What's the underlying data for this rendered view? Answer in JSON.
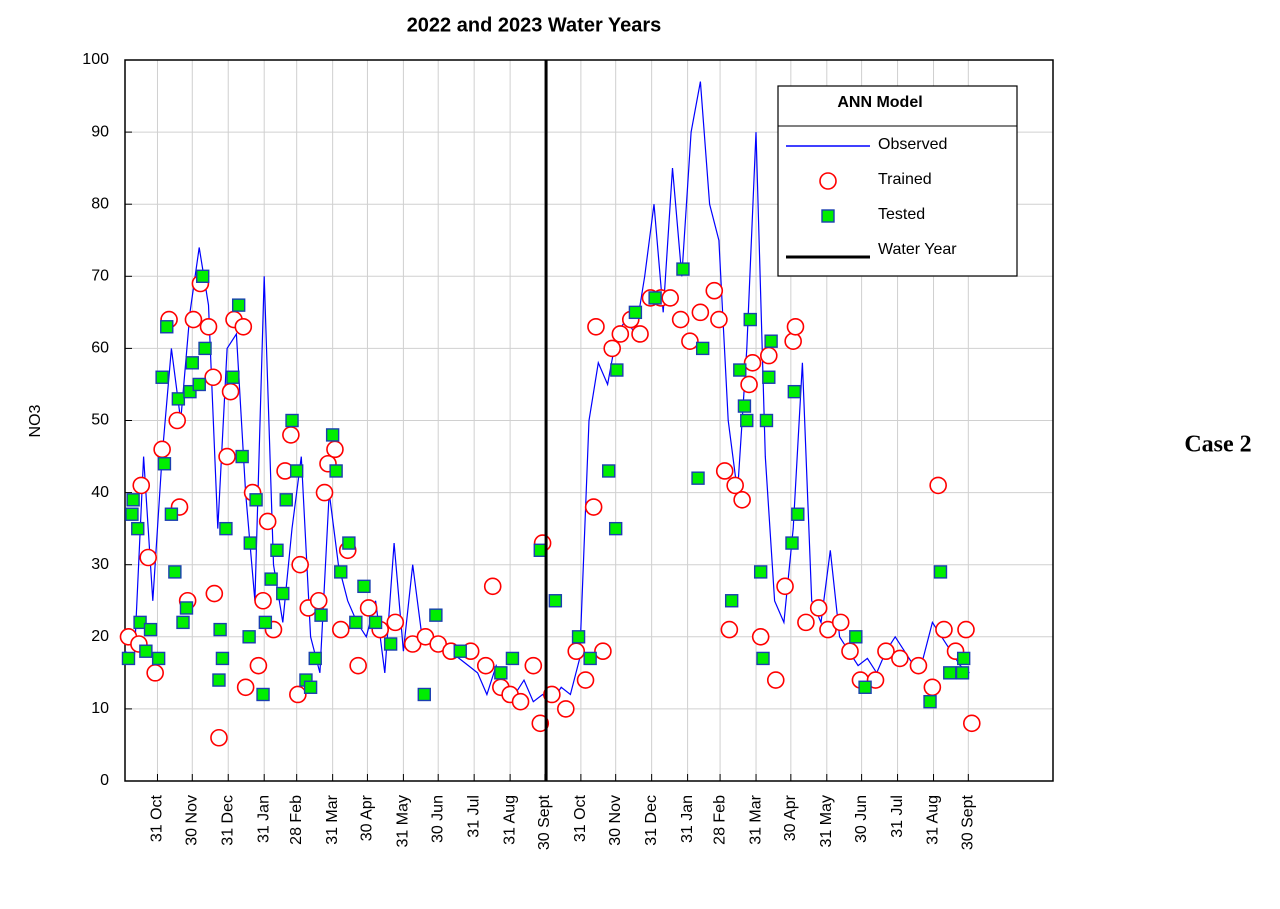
{
  "chart_data": {
    "type": "line",
    "title": "2022 and 2023 Water Years",
    "ylabel": "NO3",
    "annotation": "Case 2",
    "legend_title": "ANN Model",
    "legend_position": "upper right",
    "grid": true,
    "xlim": [
      2,
      802
    ],
    "ylim": [
      0,
      100
    ],
    "yticks": [
      0,
      10,
      20,
      30,
      40,
      50,
      60,
      70,
      80,
      90,
      100
    ],
    "xticks": [
      {
        "value": 30,
        "label": "31 Oct"
      },
      {
        "value": 60,
        "label": "30 Nov"
      },
      {
        "value": 91,
        "label": "31 Dec"
      },
      {
        "value": 122,
        "label": "31 Jan"
      },
      {
        "value": 150,
        "label": "28 Feb"
      },
      {
        "value": 181,
        "label": "31 Mar"
      },
      {
        "value": 211,
        "label": "30 Apr"
      },
      {
        "value": 242,
        "label": "31 May"
      },
      {
        "value": 272,
        "label": "30 Jun"
      },
      {
        "value": 303,
        "label": "31 Jul"
      },
      {
        "value": 334,
        "label": "31 Aug"
      },
      {
        "value": 364,
        "label": "30 Sept"
      },
      {
        "value": 395,
        "label": "31 Oct"
      },
      {
        "value": 425,
        "label": "30 Nov"
      },
      {
        "value": 456,
        "label": "31 Dec"
      },
      {
        "value": 487,
        "label": "31 Jan"
      },
      {
        "value": 515,
        "label": "28 Feb"
      },
      {
        "value": 546,
        "label": "31 Mar"
      },
      {
        "value": 576,
        "label": "30 Apr"
      },
      {
        "value": 607,
        "label": "31 May"
      },
      {
        "value": 637,
        "label": "30 Jun"
      },
      {
        "value": 668,
        "label": "31 Jul"
      },
      {
        "value": 699,
        "label": "31 Aug"
      },
      {
        "value": 729,
        "label": "30 Sept"
      }
    ],
    "series": [
      {
        "name": "Observed",
        "style": "line",
        "color": "#0000ff",
        "x": [
          2,
          10,
          18,
          26,
          34,
          42,
          50,
          58,
          66,
          74,
          82,
          90,
          98,
          106,
          114,
          122,
          130,
          138,
          146,
          154,
          162,
          170,
          178,
          186,
          194,
          202,
          210,
          218,
          226,
          234,
          242,
          250,
          258,
          266,
          274,
          282,
          290,
          298,
          306,
          314,
          322,
          330,
          338,
          346,
          354,
          362,
          370,
          378,
          386,
          394,
          402,
          410,
          418,
          426,
          434,
          442,
          450,
          458,
          466,
          474,
          482,
          490,
          498,
          506,
          514,
          522,
          530,
          538,
          546,
          554,
          562,
          570,
          578,
          586,
          594,
          602,
          610,
          618,
          626,
          634,
          642,
          650,
          658,
          666,
          674,
          682,
          690,
          698,
          706,
          714,
          722,
          730
        ],
        "values": [
          18,
          17,
          45,
          25,
          45,
          60,
          50,
          65,
          74,
          66,
          35,
          60,
          62,
          40,
          25,
          70,
          30,
          22,
          35,
          45,
          20,
          15,
          40,
          30,
          25,
          22,
          20,
          25,
          15,
          33,
          18,
          30,
          20,
          19,
          20,
          18,
          17,
          16,
          15,
          12,
          16,
          13,
          12,
          14,
          11,
          12,
          11,
          13,
          12,
          17,
          50,
          58,
          55,
          62,
          64,
          62,
          70,
          80,
          65,
          85,
          70,
          90,
          97,
          80,
          75,
          50,
          40,
          60,
          90,
          45,
          25,
          22,
          35,
          58,
          25,
          22,
          32,
          20,
          18,
          16,
          17,
          15,
          18,
          20,
          18,
          16,
          17,
          22,
          20,
          18,
          16,
          15
        ]
      },
      {
        "name": "Trained",
        "style": "circle",
        "color": "#ff0000",
        "x": [
          5,
          14,
          16,
          22,
          28,
          34,
          40,
          47,
          49,
          56,
          61,
          67,
          74,
          78,
          79,
          83,
          90,
          93,
          96,
          104,
          106,
          112,
          117,
          121,
          125,
          130,
          140,
          145,
          151,
          153,
          160,
          169,
          174,
          177,
          183,
          188,
          194,
          203,
          212,
          222,
          235,
          250,
          261,
          272,
          283,
          300,
          313,
          319,
          326,
          334,
          343,
          354,
          360,
          362,
          370,
          382,
          391,
          399,
          406,
          408,
          414,
          422,
          429,
          438,
          446,
          455,
          464,
          472,
          481,
          489,
          498,
          510,
          514,
          519,
          523,
          528,
          534,
          540,
          543,
          550,
          557,
          563,
          571,
          578,
          580,
          589,
          600,
          608,
          619,
          627,
          636,
          649,
          658,
          670,
          686,
          698,
          703,
          708,
          718,
          727,
          732
        ],
        "values": [
          20,
          19,
          41,
          31,
          15,
          46,
          64,
          50,
          38,
          25,
          64,
          69,
          63,
          56,
          26,
          6,
          45,
          54,
          64,
          63,
          13,
          40,
          16,
          25,
          36,
          21,
          43,
          48,
          12,
          30,
          24,
          25,
          40,
          44,
          46,
          21,
          32,
          16,
          24,
          21,
          22,
          19,
          20,
          19,
          18,
          18,
          16,
          27,
          13,
          12,
          11,
          16,
          8,
          33,
          12,
          10,
          18,
          14,
          38,
          63,
          18,
          60,
          62,
          64,
          62,
          67,
          67,
          67,
          64,
          61,
          65,
          68,
          64,
          43,
          21,
          41,
          39,
          55,
          58,
          20,
          59,
          14,
          27,
          61,
          63,
          22,
          24,
          21,
          22,
          18,
          14,
          14,
          18,
          17,
          16,
          13,
          41,
          21,
          18,
          21,
          8
        ]
      },
      {
        "name": "Tested",
        "style": "square",
        "color": "#00ee00",
        "x": [
          5,
          8,
          9,
          13,
          15,
          20,
          24,
          31,
          34,
          36,
          38,
          42,
          45,
          48,
          52,
          55,
          58,
          60,
          66,
          69,
          71,
          83,
          84,
          86,
          89,
          95,
          100,
          103,
          109,
          110,
          115,
          121,
          123,
          128,
          133,
          138,
          141,
          146,
          150,
          158,
          162,
          166,
          171,
          181,
          184,
          188,
          195,
          201,
          208,
          218,
          231,
          260,
          270,
          291,
          326,
          336,
          360,
          373,
          393,
          403,
          419,
          425,
          426,
          442,
          459,
          483,
          496,
          500,
          525,
          532,
          536,
          538,
          541,
          550,
          552,
          555,
          557,
          559,
          577,
          579,
          582,
          632,
          640,
          696,
          705,
          713,
          724,
          725
        ],
        "values": [
          17,
          37,
          39,
          35,
          22,
          18,
          21,
          17,
          56,
          44,
          63,
          37,
          29,
          53,
          22,
          24,
          54,
          58,
          55,
          70,
          60,
          14,
          21,
          17,
          35,
          56,
          66,
          45,
          20,
          33,
          39,
          12,
          22,
          28,
          32,
          26,
          39,
          50,
          43,
          14,
          13,
          17,
          23,
          48,
          43,
          29,
          33,
          22,
          27,
          22,
          19,
          12,
          23,
          18,
          15,
          17,
          32,
          25,
          20,
          17,
          43,
          35,
          57,
          65,
          67,
          71,
          42,
          60,
          25,
          57,
          52,
          50,
          64,
          29,
          17,
          50,
          56,
          61,
          33,
          54,
          37,
          20,
          13,
          11,
          29,
          15,
          15,
          17
        ]
      },
      {
        "name": "Water Year",
        "style": "vline",
        "color": "#000000",
        "x": 365
      }
    ]
  }
}
